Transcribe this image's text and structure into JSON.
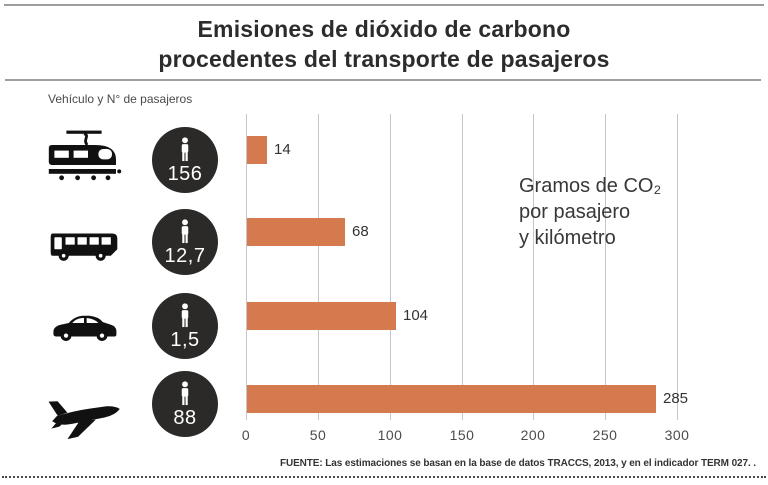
{
  "header": {
    "title_lines": [
      "Emisiones de dióxido de carbono",
      "procedentes del transporte de pasajeros"
    ]
  },
  "left_column": {
    "label": "Vehículo y N° de pasajeros"
  },
  "annotation": {
    "lines": [
      "Gramos de CO₂",
      "por pasajero",
      "y kilómetro"
    ]
  },
  "footer": {
    "source": "FUENTE: Las estimaciones se basan en la base de datos TRACCS, 2013, y en el indicador TERM 027. ."
  },
  "colors": {
    "bar": "#d5794f",
    "circle_bg": "#2b2a29",
    "gridline": "#c6c6c6",
    "rule": "#9e9e9e",
    "icon": "#111111"
  },
  "chart_data": {
    "type": "bar",
    "orientation": "horizontal",
    "title": "Emisiones de dióxido de carbono procedentes del transporte de pasajeros",
    "value_unit_label": "Gramos de CO₂ por pasajero y kilómetro",
    "categories": [
      "tram",
      "bus",
      "car",
      "plane"
    ],
    "passengers_per_vehicle": [
      "156",
      "12,7",
      "1,5",
      "88"
    ],
    "values": [
      14,
      68,
      104,
      285
    ],
    "xlim": [
      0,
      300
    ],
    "x_ticks": [
      0,
      50,
      100,
      150,
      200,
      250,
      300
    ],
    "grid": true,
    "legend": "none"
  }
}
